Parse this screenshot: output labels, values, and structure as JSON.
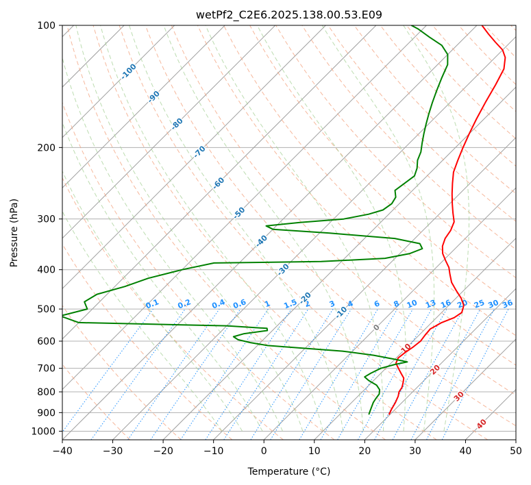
{
  "chart_data": {
    "type": "line",
    "title": "wetPf2_C2E6.2025.138.00.53.E09",
    "xlabel": "Temperature (°C)",
    "ylabel": "Pressure (hPa)",
    "xlim": [
      -40,
      50
    ],
    "ylim": [
      1050,
      100
    ],
    "y_scale": "log",
    "skew_degrees": 45,
    "x_ticks": [
      -40,
      -30,
      -20,
      -10,
      0,
      10,
      20,
      30,
      40,
      50
    ],
    "y_ticks": [
      100,
      200,
      300,
      400,
      500,
      600,
      700,
      800,
      900,
      1000
    ],
    "grid": true,
    "colors": {
      "temperature": "#ff0000",
      "dewpoint": "#008000",
      "isotherm": "#a0a0a0",
      "dry_adiabat": "#f4a582",
      "moist_adiabat": "#a6d096",
      "mixing_ratio": "#1e90ff",
      "isotherm_label": "#1f77b4",
      "adiabat_label": "#d62728"
    },
    "series": [
      {
        "name": "Temperature",
        "points": [
          [
            19.8,
            910
          ],
          [
            19.2,
            880
          ],
          [
            18.7,
            850
          ],
          [
            18.0,
            820
          ],
          [
            17.3,
            800
          ],
          [
            17.0,
            780
          ],
          [
            16.3,
            760
          ],
          [
            15.5,
            740
          ],
          [
            14.0,
            720
          ],
          [
            12.5,
            700
          ],
          [
            11.0,
            680
          ],
          [
            10.4,
            660
          ],
          [
            10.7,
            640
          ],
          [
            11.2,
            620
          ],
          [
            11.5,
            600
          ],
          [
            11.2,
            580
          ],
          [
            11.0,
            560
          ],
          [
            12.0,
            540
          ],
          [
            13.5,
            525
          ],
          [
            14.0,
            510
          ],
          [
            13.0,
            490
          ],
          [
            11.0,
            470
          ],
          [
            8.5,
            450
          ],
          [
            6.0,
            430
          ],
          [
            4.0,
            410
          ],
          [
            2.5,
            395
          ],
          [
            0.5,
            380
          ],
          [
            -1.5,
            365
          ],
          [
            -3.0,
            350
          ],
          [
            -4.0,
            335
          ],
          [
            -4.5,
            320
          ],
          [
            -5.5,
            305
          ],
          [
            -7.5,
            290
          ],
          [
            -9.5,
            275
          ],
          [
            -11.5,
            260
          ],
          [
            -13.5,
            245
          ],
          [
            -15.5,
            230
          ],
          [
            -17.0,
            215
          ],
          [
            -18.5,
            200
          ],
          [
            -20.0,
            185
          ],
          [
            -21.5,
            170
          ],
          [
            -23.0,
            155
          ],
          [
            -24.5,
            140
          ],
          [
            -26.0,
            128
          ],
          [
            -28.0,
            120
          ],
          [
            -30.0,
            115
          ],
          [
            -33.0,
            110
          ],
          [
            -36.0,
            105
          ],
          [
            -39.0,
            100
          ]
        ]
      },
      {
        "name": "Dewpoint",
        "points": [
          [
            15.8,
            910
          ],
          [
            15.3,
            890
          ],
          [
            14.8,
            870
          ],
          [
            14.3,
            850
          ],
          [
            14.0,
            830
          ],
          [
            13.8,
            810
          ],
          [
            13.0,
            790
          ],
          [
            11.5,
            770
          ],
          [
            9.0,
            750
          ],
          [
            7.5,
            735
          ],
          [
            8.0,
            720
          ],
          [
            9.0,
            700
          ],
          [
            11.0,
            685
          ],
          [
            13.0,
            675
          ],
          [
            10.0,
            665
          ],
          [
            5.0,
            650
          ],
          [
            -2.0,
            635
          ],
          [
            -10.0,
            625
          ],
          [
            -18.0,
            615
          ],
          [
            -22.0,
            605
          ],
          [
            -25.0,
            595
          ],
          [
            -26.5,
            585
          ],
          [
            -25.0,
            575
          ],
          [
            -21.0,
            565
          ],
          [
            -21.5,
            558
          ],
          [
            -30.0,
            550
          ],
          [
            -45.0,
            545
          ],
          [
            -60.0,
            540
          ],
          [
            -65.0,
            520
          ],
          [
            -61.0,
            500
          ],
          [
            -63.0,
            480
          ],
          [
            -62.0,
            460
          ],
          [
            -58.0,
            440
          ],
          [
            -55.0,
            420
          ],
          [
            -50.0,
            400
          ],
          [
            -45.0,
            385
          ],
          [
            -24.0,
            382
          ],
          [
            -12.0,
            375
          ],
          [
            -8.0,
            365
          ],
          [
            -6.5,
            355
          ],
          [
            -8.0,
            345
          ],
          [
            -14.0,
            335
          ],
          [
            -28.0,
            325
          ],
          [
            -40.0,
            318
          ],
          [
            -42.0,
            312
          ],
          [
            -36.0,
            306
          ],
          [
            -28.0,
            300
          ],
          [
            -24.0,
            292
          ],
          [
            -22.0,
            285
          ],
          [
            -21.5,
            275
          ],
          [
            -22.0,
            265
          ],
          [
            -23.5,
            255
          ],
          [
            -23.0,
            245
          ],
          [
            -22.5,
            235
          ],
          [
            -23.5,
            225
          ],
          [
            -25.0,
            215
          ],
          [
            -26.0,
            205
          ],
          [
            -27.5,
            195
          ],
          [
            -29.0,
            185
          ],
          [
            -30.5,
            175
          ],
          [
            -32.0,
            165
          ],
          [
            -33.5,
            155
          ],
          [
            -35.0,
            145
          ],
          [
            -36.5,
            135
          ],
          [
            -38.0,
            125
          ],
          [
            -40.0,
            118
          ],
          [
            -43.0,
            112
          ],
          [
            -47.0,
            107
          ],
          [
            -51.0,
            102
          ],
          [
            -53.0,
            100
          ]
        ]
      }
    ],
    "isotherm_labels": [
      "-100",
      "-90",
      "-80",
      "-70",
      "-60",
      "-50",
      "-40",
      "-30",
      "-20",
      "-10",
      "0",
      "10",
      "20",
      "30",
      "40"
    ],
    "mixing_ratio_labels": [
      "0.1",
      "0.2",
      "0.4",
      "0.6",
      "1",
      "1.5",
      "2",
      "3",
      "4",
      "6",
      "8",
      "10",
      "13",
      "16",
      "20",
      "25",
      "30",
      "36"
    ]
  }
}
